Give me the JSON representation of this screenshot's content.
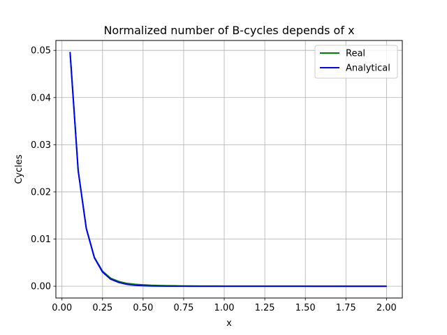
{
  "chart_data": {
    "type": "line",
    "title": "Normalized number of B-cycles depends of x",
    "xlabel": "x",
    "ylabel": "Cycles",
    "xlim": [
      -0.0375,
      2.0975
    ],
    "ylim": [
      -0.0025,
      0.0521
    ],
    "xticks": [
      "0.00",
      "0.25",
      "0.50",
      "0.75",
      "1.00",
      "1.25",
      "1.50",
      "1.75",
      "2.00"
    ],
    "yticks": [
      "0.00",
      "0.01",
      "0.02",
      "0.03",
      "0.04",
      "0.05"
    ],
    "grid": true,
    "legend_position": "upper right",
    "x": [
      0.05,
      0.1,
      0.15,
      0.2,
      0.25,
      0.3,
      0.35,
      0.4,
      0.45,
      0.5,
      0.55,
      0.6,
      0.65,
      0.7,
      0.75,
      0.8,
      0.85,
      0.9,
      0.95,
      1.0,
      1.05,
      1.1,
      1.15,
      1.2,
      1.25,
      1.3,
      1.35,
      1.4,
      1.45,
      1.5,
      1.55,
      1.6,
      1.65,
      1.7,
      1.75,
      1.8,
      1.85,
      1.9,
      1.95,
      2.0
    ],
    "series": [
      {
        "name": "Real",
        "color": "#008000",
        "values": [
          0.0496,
          0.0245,
          0.0123,
          0.0061,
          0.0032,
          0.0017,
          0.001,
          0.0006,
          0.0004,
          0.0003,
          0.0002,
          0.00015,
          0.0001,
          8e-05,
          6e-05,
          5e-05,
          4e-05,
          3e-05,
          3e-05,
          2e-05,
          2e-05,
          2e-05,
          1e-05,
          1e-05,
          1e-05,
          1e-05,
          1e-05,
          1e-05,
          1e-05,
          1e-05,
          0.0,
          0.0,
          0.0,
          0.0,
          0.0,
          0.0,
          0.0,
          0.0,
          0.0,
          0.0
        ]
      },
      {
        "name": "Analytical",
        "color": "#0000ff",
        "values": [
          0.0496,
          0.0245,
          0.0122,
          0.006,
          0.003,
          0.0015,
          0.0008,
          0.0004,
          0.0002,
          0.0001,
          6e-05,
          3e-05,
          2e-05,
          1e-05,
          1e-05,
          0.0,
          0.0,
          0.0,
          0.0,
          0.0,
          0.0,
          0.0,
          0.0,
          0.0,
          0.0,
          0.0,
          0.0,
          0.0,
          0.0,
          0.0,
          0.0,
          0.0,
          0.0,
          0.0,
          0.0,
          0.0,
          0.0,
          0.0,
          0.0,
          0.0
        ]
      }
    ]
  }
}
